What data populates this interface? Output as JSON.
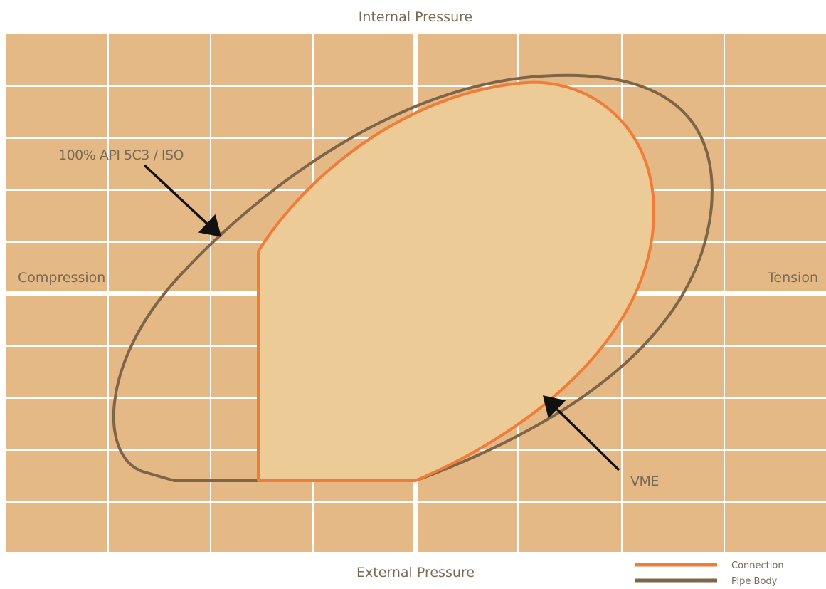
{
  "labels": {
    "top": "Internal Pressure",
    "bottom": "External Pressure",
    "left": "Compression",
    "right": "Tension"
  },
  "annotations": {
    "api": "100% API 5C3 / ISO",
    "vme": "VME"
  },
  "legend": {
    "connection": "Connection",
    "pipe_body": "Pipe Body"
  },
  "colors": {
    "background": "#e4b985",
    "grid": "#ffffff",
    "connection": "#f07c3a",
    "connection_fill": "#edcb96",
    "pipe_body": "#7e6547",
    "arrow": "#111111",
    "text": "#7a6a55"
  }
}
